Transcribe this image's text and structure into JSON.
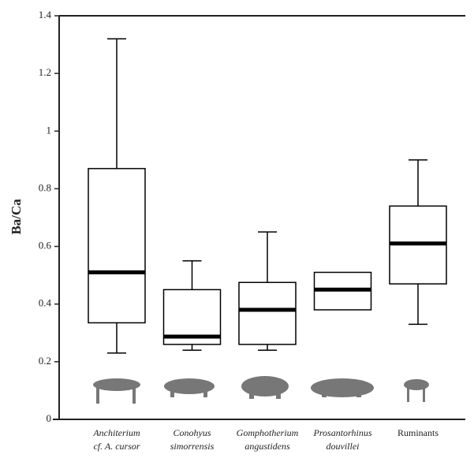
{
  "chart_data": {
    "type": "box",
    "ylabel": "Ba/Ca",
    "categories": [
      [
        "Anchiterium",
        "cf. A. cursor"
      ],
      [
        "Conohyus",
        "simorrensis"
      ],
      [
        "Gomphotherium",
        "angustidens"
      ],
      [
        "Prosantorhinus",
        "douvillei"
      ],
      [
        "Ruminants"
      ]
    ],
    "min": [
      0.23,
      0.24,
      0.24,
      null,
      0.33
    ],
    "q1": [
      0.335,
      0.26,
      0.26,
      0.38,
      0.47
    ],
    "median": [
      0.51,
      0.287,
      0.38,
      0.45,
      0.61
    ],
    "q3": [
      0.87,
      0.45,
      0.475,
      0.51,
      0.74
    ],
    "max": [
      1.32,
      0.55,
      0.65,
      null,
      0.9
    ],
    "ylim": [
      0,
      1.4
    ],
    "yticks": [
      0,
      0.2,
      0.4,
      0.6,
      0.8,
      1,
      1.2,
      1.4
    ],
    "color": "#000000"
  }
}
